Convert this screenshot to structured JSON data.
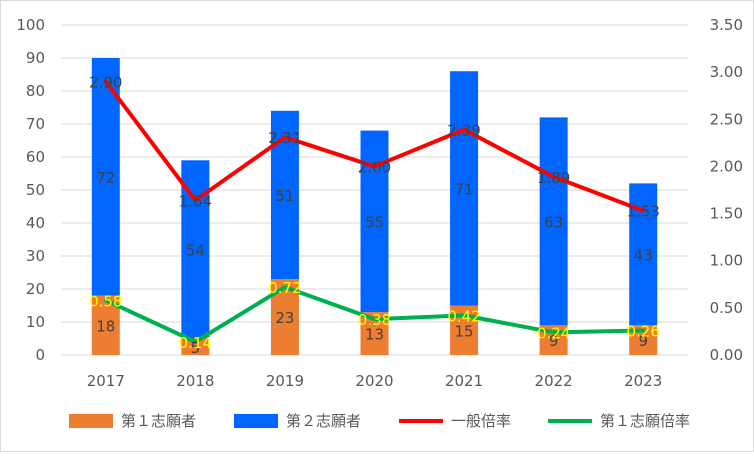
{
  "chart_data": {
    "type": "bar",
    "categories": [
      "2017",
      "2018",
      "2019",
      "2020",
      "2021",
      "2022",
      "2023"
    ],
    "series": [
      {
        "name": "第１志願者",
        "type": "stacked-bar",
        "axis": "left",
        "color": "#ED7D31",
        "values": [
          18,
          5,
          23,
          13,
          15,
          9,
          9
        ],
        "labels": [
          "18",
          "5",
          "23",
          "13",
          "15",
          "9",
          "9"
        ]
      },
      {
        "name": "第２志願者",
        "type": "stacked-bar",
        "axis": "left",
        "color": "#0066FF",
        "values": [
          72,
          54,
          51,
          55,
          71,
          63,
          43
        ],
        "labels": [
          "72",
          "54",
          "51",
          "55",
          "71",
          "63",
          "43"
        ]
      },
      {
        "name": "一般倍率",
        "type": "line",
        "axis": "right",
        "color": "#FF0000",
        "values": [
          2.9,
          1.64,
          2.31,
          2.0,
          2.39,
          1.89,
          1.53
        ],
        "labels": [
          "2.90",
          "1.64",
          "2.31",
          "2.00",
          "2.39",
          "1.89",
          "1.53"
        ]
      },
      {
        "name": "第１志願倍率",
        "type": "line",
        "axis": "right",
        "color": "#00B050",
        "values": [
          0.58,
          0.14,
          0.72,
          0.38,
          0.42,
          0.24,
          0.26
        ],
        "labels": [
          "0.58",
          "0.14",
          "0.72",
          "0.38",
          "0.42",
          "0.24",
          "0.26"
        ]
      }
    ],
    "ylim": [
      0,
      100
    ],
    "y_ticks": [
      "0",
      "10",
      "20",
      "30",
      "40",
      "50",
      "60",
      "70",
      "80",
      "90",
      "100"
    ],
    "y2lim": [
      0,
      3.5
    ],
    "y2_ticks": [
      "0.00",
      "0.50",
      "1.00",
      "1.50",
      "2.00",
      "2.50",
      "3.00",
      "3.50"
    ],
    "grid": true,
    "legend": "bottom"
  },
  "colors": {
    "label_dark": "#404040",
    "label_yellow": "#FFFF00",
    "grid": "#d9d9d9",
    "axis_text": "#595959"
  }
}
